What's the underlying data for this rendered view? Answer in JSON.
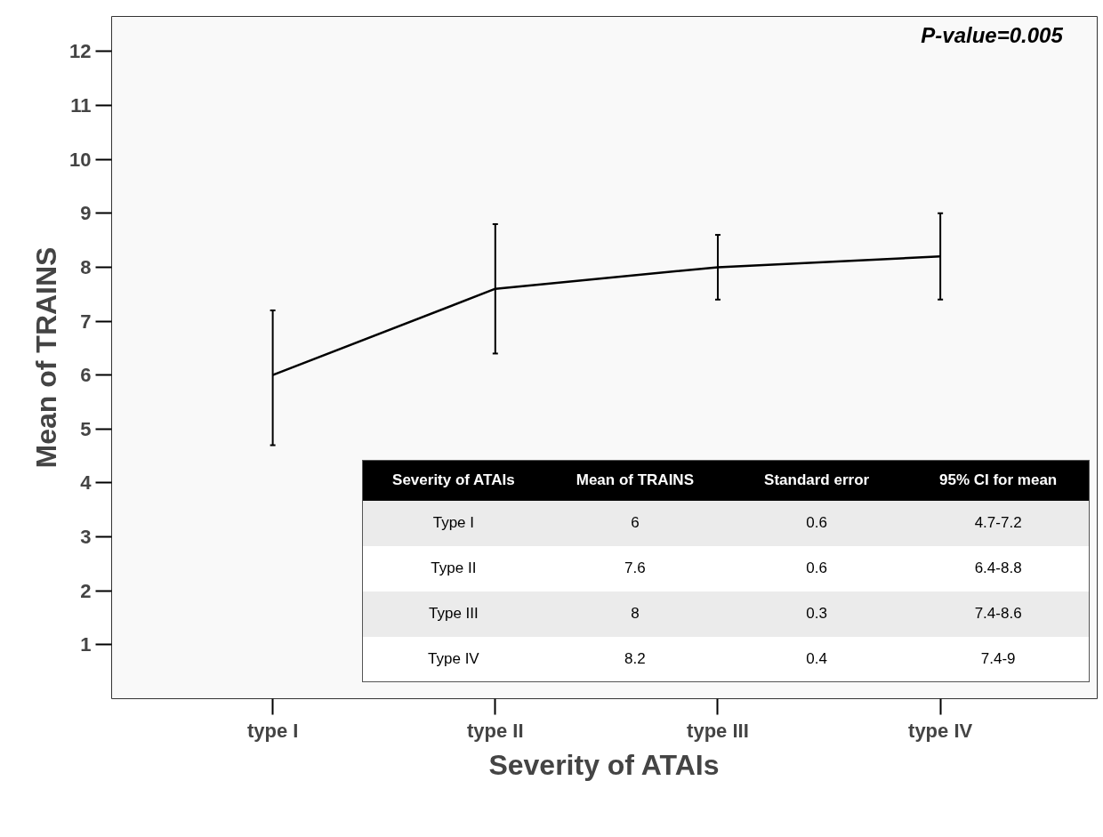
{
  "chart_data": {
    "type": "line",
    "xlabel": "Severity of ATAIs",
    "ylabel": "Mean of TRAINS",
    "categories": [
      "type I",
      "type II",
      "type III",
      "type IV"
    ],
    "series": [
      {
        "color": "#000000",
        "values": [
          6,
          7.6,
          8,
          8.2
        ],
        "errors": [
          [
            4.7,
            7.2
          ],
          [
            6.4,
            8.8
          ],
          [
            7.4,
            8.6
          ],
          [
            7.4,
            9
          ]
        ]
      }
    ],
    "ylim": [
      0,
      12.65
    ],
    "yticks": [
      1,
      2,
      3,
      4,
      5,
      6,
      7,
      8,
      9,
      10,
      11,
      12
    ],
    "grid": false,
    "marker": "none",
    "line_style": "solid",
    "annotations": [
      "P-value=0.005",
      "Severity of ATAIs",
      "Mean of TRAINS",
      "Standard error",
      "95% CI for mean",
      "Type I",
      "6",
      "0.6",
      "4.7-7.2",
      "Type II",
      "7.6",
      "0.6",
      "6.4-8.8",
      "Type III",
      "8",
      "0.3",
      "7.4-8.6",
      "Type IV",
      "8.2",
      "0.4",
      "7.4-9"
    ]
  }
}
